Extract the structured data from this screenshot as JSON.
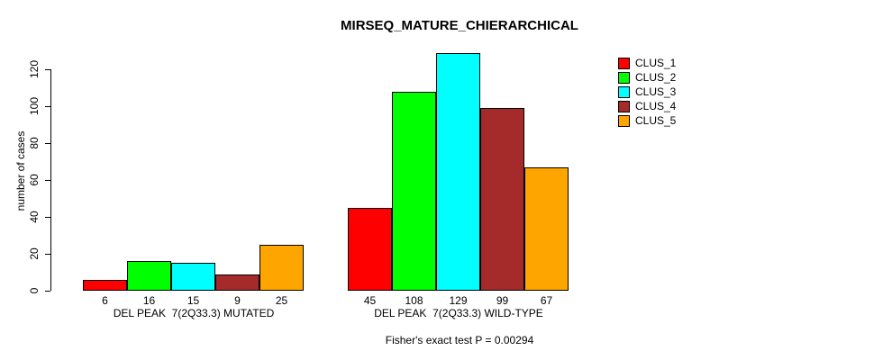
{
  "page": {
    "background": "#ffffff",
    "text_color": "#000000"
  },
  "chart_data": {
    "type": "bar",
    "title": "MIRSEQ_MATURE_CHIERARCHICAL",
    "xlabel": "",
    "ylabel": "number of cases",
    "ylim": [
      0,
      120
    ],
    "yticks": [
      0,
      20,
      40,
      60,
      80,
      100,
      120
    ],
    "grid": false,
    "legend_position": "right",
    "legend": [
      {
        "name": "CLUS_1",
        "color": "#ff0000"
      },
      {
        "name": "CLUS_2",
        "color": "#00ff00"
      },
      {
        "name": "CLUS_3",
        "color": "#00ffff"
      },
      {
        "name": "CLUS_4",
        "color": "#a52a2a"
      },
      {
        "name": "CLUS_5",
        "color": "#ffa500"
      }
    ],
    "groups": [
      {
        "label": "DEL PEAK  7(2Q33.3) MUTATED",
        "values": [
          6,
          16,
          15,
          9,
          25
        ]
      },
      {
        "label": "DEL PEAK  7(2Q33.3) WILD-TYPE",
        "values": [
          45,
          108,
          129,
          99,
          67
        ]
      }
    ],
    "bar_value_labels_shown": true,
    "annotation": "Fisher's exact test P = 0.00294"
  }
}
